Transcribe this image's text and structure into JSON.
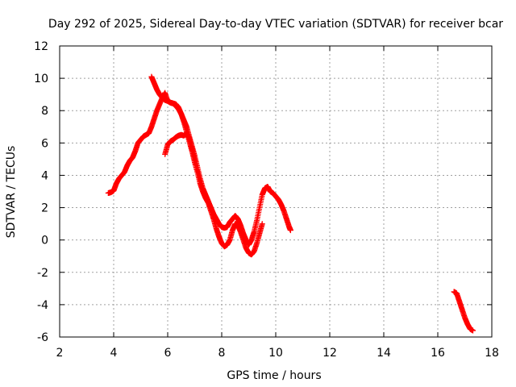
{
  "chart_data": {
    "type": "scatter",
    "title": "Day 292 of 2025, Sidereal Day-to-day VTEC variation (SDTVAR) for receiver bcar",
    "xlabel": "GPS time / hours",
    "ylabel": "SDTVAR / TECUs",
    "xlim": [
      2,
      18
    ],
    "ylim": [
      -6,
      12
    ],
    "xticks": [
      2,
      4,
      6,
      8,
      10,
      12,
      14,
      16,
      18
    ],
    "yticks": [
      -6,
      -4,
      -2,
      0,
      2,
      4,
      6,
      8,
      10,
      12
    ],
    "grid": true,
    "marker": "+",
    "color": "#ff0000",
    "series": [
      {
        "points": [
          [
            3.8,
            2.9
          ],
          [
            3.9,
            2.95
          ],
          [
            4.0,
            3.05
          ],
          [
            4.1,
            3.5
          ],
          [
            4.2,
            3.8
          ],
          [
            4.3,
            4.0
          ],
          [
            4.4,
            4.2
          ],
          [
            4.5,
            4.6
          ],
          [
            4.6,
            4.9
          ],
          [
            4.7,
            5.1
          ],
          [
            4.8,
            5.5
          ],
          [
            4.9,
            6.0
          ],
          [
            5.0,
            6.2
          ],
          [
            5.1,
            6.4
          ],
          [
            5.2,
            6.5
          ],
          [
            5.3,
            6.6
          ],
          [
            5.4,
            7.0
          ],
          [
            5.5,
            7.5
          ],
          [
            5.6,
            8.0
          ],
          [
            5.7,
            8.4
          ],
          [
            5.8,
            8.8
          ],
          [
            5.9,
            9.1
          ],
          [
            6.0,
            8.6
          ],
          [
            6.1,
            8.5
          ],
          [
            6.2,
            8.45
          ],
          [
            6.3,
            8.4
          ],
          [
            6.4,
            8.2
          ],
          [
            6.5,
            7.8
          ],
          [
            6.6,
            7.3
          ],
          [
            6.7,
            6.7
          ],
          [
            6.8,
            6.1
          ],
          [
            6.9,
            5.5
          ],
          [
            7.0,
            4.8
          ],
          [
            7.1,
            4.2
          ],
          [
            7.2,
            3.5
          ],
          [
            7.3,
            3.0
          ],
          [
            7.4,
            2.6
          ],
          [
            7.5,
            2.3
          ],
          [
            7.6,
            1.8
          ],
          [
            7.7,
            1.3
          ],
          [
            7.8,
            0.7
          ],
          [
            7.9,
            0.2
          ],
          [
            8.0,
            -0.2
          ],
          [
            8.1,
            -0.4
          ],
          [
            8.2,
            -0.3
          ],
          [
            8.3,
            0.0
          ],
          [
            8.4,
            0.6
          ],
          [
            8.5,
            1.0
          ],
          [
            8.6,
            0.9
          ],
          [
            8.7,
            0.5
          ],
          [
            8.8,
            0.0
          ],
          [
            8.9,
            -0.5
          ],
          [
            9.0,
            -0.8
          ],
          [
            9.1,
            -0.9
          ],
          [
            9.2,
            -0.7
          ],
          [
            9.3,
            -0.2
          ],
          [
            9.4,
            0.4
          ],
          [
            9.5,
            1.0
          ]
        ]
      },
      {
        "points": [
          [
            5.4,
            10.1
          ],
          [
            5.5,
            9.7
          ],
          [
            5.6,
            9.3
          ],
          [
            5.7,
            9.0
          ],
          [
            5.8,
            8.8
          ],
          [
            5.9,
            8.65
          ],
          [
            6.0,
            8.6
          ],
          [
            6.1,
            8.5
          ],
          [
            6.2,
            8.45
          ],
          [
            6.3,
            8.3
          ],
          [
            6.4,
            8.1
          ],
          [
            6.5,
            7.8
          ],
          [
            6.6,
            7.4
          ],
          [
            6.7,
            7.0
          ],
          [
            6.8,
            6.4
          ],
          [
            6.9,
            5.8
          ],
          [
            7.0,
            5.2
          ],
          [
            7.1,
            4.5
          ],
          [
            7.2,
            3.8
          ],
          [
            7.3,
            3.2
          ],
          [
            7.4,
            2.8
          ],
          [
            7.5,
            2.4
          ],
          [
            7.6,
            2.0
          ],
          [
            7.7,
            1.6
          ],
          [
            7.8,
            1.3
          ],
          [
            7.9,
            1.0
          ],
          [
            8.0,
            0.8
          ],
          [
            8.1,
            0.75
          ],
          [
            8.2,
            0.8
          ],
          [
            8.3,
            1.1
          ],
          [
            8.4,
            1.3
          ],
          [
            8.5,
            1.5
          ],
          [
            8.6,
            1.3
          ],
          [
            8.7,
            0.9
          ],
          [
            8.8,
            0.4
          ],
          [
            8.9,
            0.0
          ],
          [
            9.0,
            -0.3
          ],
          [
            9.1,
            0.0
          ],
          [
            9.2,
            0.5
          ],
          [
            9.3,
            1.2
          ],
          [
            9.4,
            2.0
          ],
          [
            9.5,
            2.8
          ],
          [
            9.6,
            3.2
          ],
          [
            9.7,
            3.3
          ],
          [
            9.8,
            3.0
          ],
          [
            9.9,
            2.9
          ],
          [
            10.0,
            2.7
          ],
          [
            10.1,
            2.5
          ],
          [
            10.2,
            2.2
          ],
          [
            10.3,
            1.8
          ],
          [
            10.4,
            1.3
          ],
          [
            10.5,
            0.8
          ],
          [
            10.55,
            0.6
          ]
        ]
      },
      {
        "points": [
          [
            5.9,
            5.3
          ],
          [
            6.0,
            5.9
          ],
          [
            6.1,
            6.1
          ],
          [
            6.2,
            6.2
          ],
          [
            6.3,
            6.35
          ],
          [
            6.4,
            6.45
          ],
          [
            6.5,
            6.5
          ],
          [
            6.6,
            6.45
          ],
          [
            6.7,
            6.6
          ],
          [
            6.8,
            6.3
          ],
          [
            6.9,
            5.6
          ],
          [
            7.0,
            4.9
          ]
        ]
      },
      {
        "points": [
          [
            16.6,
            -3.2
          ],
          [
            16.7,
            -3.3
          ],
          [
            16.8,
            -3.8
          ],
          [
            16.9,
            -4.3
          ],
          [
            17.0,
            -4.8
          ],
          [
            17.1,
            -5.2
          ],
          [
            17.2,
            -5.5
          ],
          [
            17.3,
            -5.6
          ]
        ]
      }
    ]
  }
}
